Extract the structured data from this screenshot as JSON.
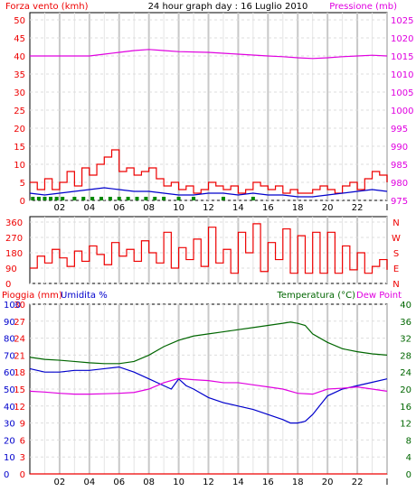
{
  "header": {
    "title": "24 hour graph day : 16 Luglio 2010",
    "left_label": "Forza vento (kmh)",
    "right_label": "Pressione (mb)"
  },
  "colors": {
    "wind": "#ee0000",
    "gust_fill": "#008800",
    "wind_avg": "#0000cc",
    "pressure": "#e000e0",
    "temperature": "#006600",
    "humidity": "#0000cc",
    "dewpoint": "#e000e0",
    "rain": "#ee0000",
    "grid": "#cccccc"
  },
  "panel3": {
    "rain_label": "Pioggia (mm)",
    "hum_label": "Umidita %",
    "temp_label": "Temperatura (°C)",
    "dew_label": "Dew Point"
  },
  "chart_data": [
    {
      "type": "line",
      "title": "24 hour graph day : 16 Luglio 2010",
      "x_ticks": [
        "02",
        "04",
        "06",
        "08",
        "10",
        "12",
        "14",
        "16",
        "18",
        "20",
        "22",
        "I"
      ],
      "xlim": [
        0,
        24
      ],
      "left_axis": {
        "label": "Forza vento (kmh)",
        "ylim": [
          0,
          50
        ],
        "ticks": [
          "0",
          "5",
          "10",
          "15",
          "20",
          "25",
          "30",
          "35",
          "40",
          "45",
          "50"
        ]
      },
      "right_axis": {
        "label": "Pressione (mb)",
        "ylim": [
          975,
          1025
        ],
        "ticks": [
          "975",
          "980",
          "985",
          "990",
          "995",
          "1000",
          "1005",
          "1010",
          "1015",
          "1020",
          "1025"
        ]
      },
      "series": [
        {
          "name": "Pressione (mb)",
          "axis": "right",
          "x": [
            0,
            2,
            4,
            5,
            6,
            7,
            8,
            9,
            10,
            12,
            14,
            16,
            17,
            18,
            19,
            20,
            21,
            22,
            23,
            24
          ],
          "y": [
            1015.0,
            1015.0,
            1015.0,
            1015.5,
            1016.0,
            1016.5,
            1016.8,
            1016.5,
            1016.2,
            1016.0,
            1015.5,
            1015.0,
            1014.8,
            1014.5,
            1014.3,
            1014.5,
            1014.8,
            1015.0,
            1015.2,
            1015.0
          ]
        },
        {
          "name": "Forza vento (kmh)",
          "axis": "left",
          "x": [
            0,
            0.5,
            1,
            1.5,
            2,
            2.5,
            3,
            3.5,
            4,
            4.5,
            5,
            5.5,
            6,
            6.5,
            7,
            7.5,
            8,
            8.5,
            9,
            9.5,
            10,
            10.5,
            11,
            11.5,
            12,
            12.5,
            13,
            13.5,
            14,
            14.5,
            15,
            15.5,
            16,
            16.5,
            17,
            17.5,
            18,
            18.5,
            19,
            19.5,
            20,
            20.5,
            21,
            21.5,
            22,
            22.5,
            23,
            23.5,
            24
          ],
          "y": [
            5,
            3,
            6,
            3,
            5,
            8,
            4,
            9,
            7,
            10,
            12,
            14,
            8,
            9,
            7,
            8,
            9,
            6,
            4,
            5,
            3,
            4,
            2,
            3,
            5,
            4,
            3,
            4,
            2,
            3,
            5,
            4,
            3,
            4,
            2,
            3,
            2,
            2,
            3,
            4,
            3,
            2,
            4,
            5,
            3,
            6,
            8,
            7,
            5
          ]
        },
        {
          "name": "average",
          "axis": "left",
          "x": [
            0,
            1,
            2,
            3,
            4,
            5,
            6,
            7,
            8,
            9,
            10,
            11,
            12,
            13,
            14,
            15,
            16,
            17,
            18,
            19,
            20,
            21,
            22,
            23,
            24
          ],
          "y": [
            2,
            1.5,
            2,
            2.5,
            3,
            3.5,
            3,
            2.5,
            2.5,
            2,
            1.5,
            1.5,
            2,
            2,
            1.5,
            2,
            1.5,
            1.5,
            1,
            1,
            1.5,
            2,
            2.5,
            3,
            2.5
          ]
        },
        {
          "name": "gust",
          "axis": "left",
          "style": "bars",
          "x": [
            0.2,
            0.6,
            1.0,
            1.4,
            1.8,
            2.2,
            3.0,
            3.6,
            4.2,
            4.8,
            5.4,
            6.0,
            6.6,
            7.2,
            7.8,
            8.4,
            9.0,
            10.0,
            11.0,
            13.0,
            15.0
          ],
          "y": [
            1,
            1,
            1,
            1,
            1,
            1,
            1,
            1,
            1,
            1,
            1,
            1,
            1,
            1,
            1,
            1,
            1,
            1,
            1,
            1,
            1
          ]
        }
      ]
    },
    {
      "type": "line",
      "title": "",
      "x_ticks": [
        "02",
        "04",
        "06",
        "08",
        "10",
        "12",
        "14",
        "16",
        "18",
        "20",
        "22",
        "I"
      ],
      "xlim": [
        0,
        24
      ],
      "left_axis": {
        "label": "",
        "ylim": [
          0,
          360
        ],
        "ticks": [
          "0",
          "90",
          "180",
          "270",
          "360"
        ]
      },
      "right_axis": {
        "label": "",
        "ticks": [
          "N",
          "E",
          "S",
          "W",
          "N"
        ]
      },
      "series": [
        {
          "name": "direction",
          "x": [
            0,
            0.5,
            1,
            1.5,
            2,
            2.5,
            3,
            3.5,
            4,
            4.5,
            5,
            5.5,
            6,
            6.5,
            7,
            7.5,
            8,
            8.5,
            9,
            9.5,
            10,
            10.5,
            11,
            11.5,
            12,
            12.5,
            13,
            13.5,
            14,
            14.5,
            15,
            15.5,
            16,
            16.5,
            17,
            17.5,
            18,
            18.5,
            19,
            19.5,
            20,
            20.5,
            21,
            21.5,
            22,
            22.5,
            23,
            23.5,
            24
          ],
          "y": [
            90,
            160,
            120,
            200,
            150,
            100,
            190,
            130,
            220,
            170,
            110,
            240,
            160,
            200,
            130,
            250,
            180,
            120,
            300,
            90,
            210,
            140,
            260,
            100,
            330,
            120,
            200,
            60,
            300,
            180,
            350,
            70,
            240,
            140,
            320,
            60,
            280,
            60,
            300,
            60,
            300,
            60,
            220,
            80,
            180,
            60,
            100,
            140,
            80
          ]
        }
      ]
    },
    {
      "type": "line",
      "title": "",
      "x_ticks": [
        "02",
        "04",
        "06",
        "08",
        "10",
        "12",
        "14",
        "16",
        "18",
        "20",
        "22",
        "I"
      ],
      "xlim": [
        0,
        24
      ],
      "rain_axis": {
        "label": "Pioggia (mm)",
        "ylim": [
          0,
          30
        ],
        "ticks": [
          "0",
          "3",
          "6",
          "9",
          "12",
          "15",
          "18",
          "21",
          "24",
          "27",
          "30"
        ]
      },
      "hum_axis": {
        "label": "Umidita %",
        "ylim": [
          0,
          100
        ],
        "ticks": [
          "0",
          "10",
          "20",
          "30",
          "40",
          "50",
          "60",
          "70",
          "80",
          "90",
          "100"
        ]
      },
      "temp_axis": {
        "label": "Temperatura (°C)",
        "ylim": [
          0,
          40
        ],
        "ticks": [
          "0",
          "4",
          "8",
          "12",
          "16",
          "20",
          "24",
          "28",
          "32",
          "36",
          "40"
        ]
      },
      "series": [
        {
          "name": "Temperatura (°C)",
          "axis": "temp",
          "x": [
            0,
            1,
            2,
            3,
            4,
            5,
            6,
            7,
            8,
            9,
            10,
            11,
            12,
            13,
            14,
            15,
            16,
            17,
            17.5,
            18,
            18.5,
            19,
            20,
            21,
            22,
            23,
            24
          ],
          "y": [
            27.5,
            27,
            26.8,
            26.5,
            26.2,
            26,
            26,
            26.5,
            28,
            30,
            31.5,
            32.5,
            33,
            33.5,
            34,
            34.5,
            35,
            35.5,
            35.8,
            35.5,
            35,
            33,
            31,
            29.5,
            28.8,
            28.3,
            28
          ]
        },
        {
          "name": "Umidita %",
          "axis": "hum",
          "x": [
            0,
            1,
            2,
            3,
            4,
            5,
            6,
            7,
            8,
            9,
            9.5,
            10,
            10.5,
            11,
            12,
            13,
            14,
            15,
            16,
            17,
            17.5,
            18,
            18.5,
            19,
            20,
            21,
            22,
            23,
            24
          ],
          "y": [
            62,
            60,
            60,
            61,
            61,
            62,
            63,
            60,
            56,
            52,
            50,
            56,
            52,
            50,
            45,
            42,
            40,
            38,
            35,
            32,
            30,
            30,
            31,
            35,
            46,
            50,
            52,
            54,
            56
          ]
        },
        {
          "name": "Dew Point",
          "axis": "temp",
          "x": [
            0,
            1,
            2,
            3,
            4,
            5,
            6,
            7,
            8,
            9,
            10,
            11,
            12,
            13,
            14,
            15,
            16,
            17,
            18,
            19,
            20,
            21,
            22,
            23,
            24
          ],
          "y": [
            19.5,
            19.3,
            19,
            18.8,
            18.8,
            18.9,
            19,
            19.2,
            20,
            21.5,
            22.5,
            22.2,
            22,
            21.5,
            21.5,
            21,
            20.5,
            20,
            19,
            18.8,
            20,
            20.2,
            20.5,
            20,
            19.5
          ]
        },
        {
          "name": "Pioggia (mm)",
          "axis": "rain",
          "x": [
            0,
            24
          ],
          "y": [
            0,
            0
          ]
        }
      ]
    }
  ]
}
